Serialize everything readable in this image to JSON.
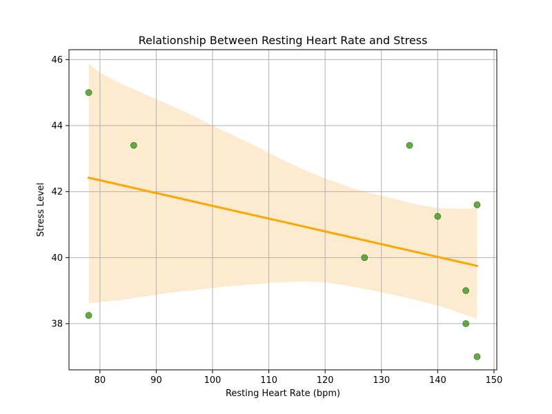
{
  "chart_data": {
    "type": "scatter",
    "title": "Relationship Between Resting Heart Rate and Stress",
    "xlabel": "Resting Heart Rate (bpm)",
    "ylabel": "Stress Level",
    "xlim": [
      74.5,
      150.5
    ],
    "ylim": [
      36.6,
      46.3
    ],
    "xticks": [
      80,
      90,
      100,
      110,
      120,
      130,
      140,
      150
    ],
    "yticks": [
      38,
      40,
      42,
      44,
      46
    ],
    "grid": true,
    "colors": {
      "points": "#4c9a2a",
      "regression_line": "#ffa500",
      "confidence_band": "#fdebd0"
    },
    "points": [
      {
        "x": 78,
        "y": 45.0
      },
      {
        "x": 78,
        "y": 38.25
      },
      {
        "x": 86,
        "y": 43.4
      },
      {
        "x": 127,
        "y": 40.0
      },
      {
        "x": 135,
        "y": 43.4
      },
      {
        "x": 140,
        "y": 41.25
      },
      {
        "x": 145,
        "y": 39.0
      },
      {
        "x": 145,
        "y": 38.0
      },
      {
        "x": 147,
        "y": 41.6
      },
      {
        "x": 147,
        "y": 37.0
      }
    ],
    "regression": {
      "x": [
        78,
        147
      ],
      "y": [
        42.42,
        39.75
      ]
    },
    "confidence_band": [
      {
        "x": 78,
        "lower": 38.62,
        "upper": 45.88
      },
      {
        "x": 80,
        "lower": 38.65,
        "upper": 45.6
      },
      {
        "x": 84,
        "lower": 38.72,
        "upper": 45.25
      },
      {
        "x": 88,
        "lower": 38.82,
        "upper": 44.95
      },
      {
        "x": 92,
        "lower": 38.93,
        "upper": 44.65
      },
      {
        "x": 96,
        "lower": 39.0,
        "upper": 44.35
      },
      {
        "x": 100,
        "lower": 39.08,
        "upper": 44.0
      },
      {
        "x": 104,
        "lower": 39.15,
        "upper": 43.68
      },
      {
        "x": 108,
        "lower": 39.2,
        "upper": 43.35
      },
      {
        "x": 112,
        "lower": 39.25,
        "upper": 43.0
      },
      {
        "x": 116,
        "lower": 39.28,
        "upper": 42.68
      },
      {
        "x": 120,
        "lower": 39.25,
        "upper": 42.4
      },
      {
        "x": 124,
        "lower": 39.15,
        "upper": 42.15
      },
      {
        "x": 128,
        "lower": 39.02,
        "upper": 41.95
      },
      {
        "x": 132,
        "lower": 38.88,
        "upper": 41.8
      },
      {
        "x": 136,
        "lower": 38.72,
        "upper": 41.62
      },
      {
        "x": 140,
        "lower": 38.55,
        "upper": 41.5
      },
      {
        "x": 144,
        "lower": 38.32,
        "upper": 41.48
      },
      {
        "x": 147,
        "lower": 38.15,
        "upper": 41.5
      }
    ]
  }
}
